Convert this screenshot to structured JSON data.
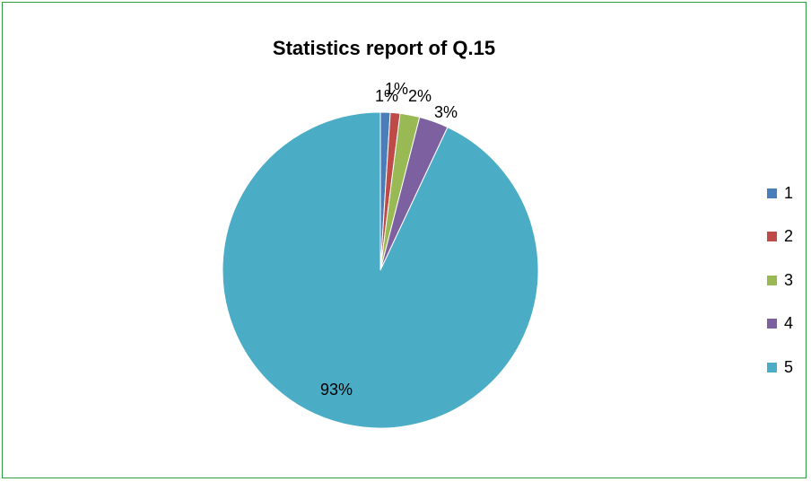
{
  "chart_data": {
    "type": "pie",
    "title": "Statistics report of Q.15",
    "categories": [
      "1",
      "2",
      "3",
      "4",
      "5"
    ],
    "values": [
      1,
      1,
      2,
      3,
      93
    ],
    "labels": [
      "1%",
      "1%",
      "2%",
      "3%",
      "93%"
    ],
    "colors": [
      "#4a7ebb",
      "#be4b48",
      "#98b954",
      "#7d60a0",
      "#4bacc6"
    ],
    "legend_position": "right"
  }
}
